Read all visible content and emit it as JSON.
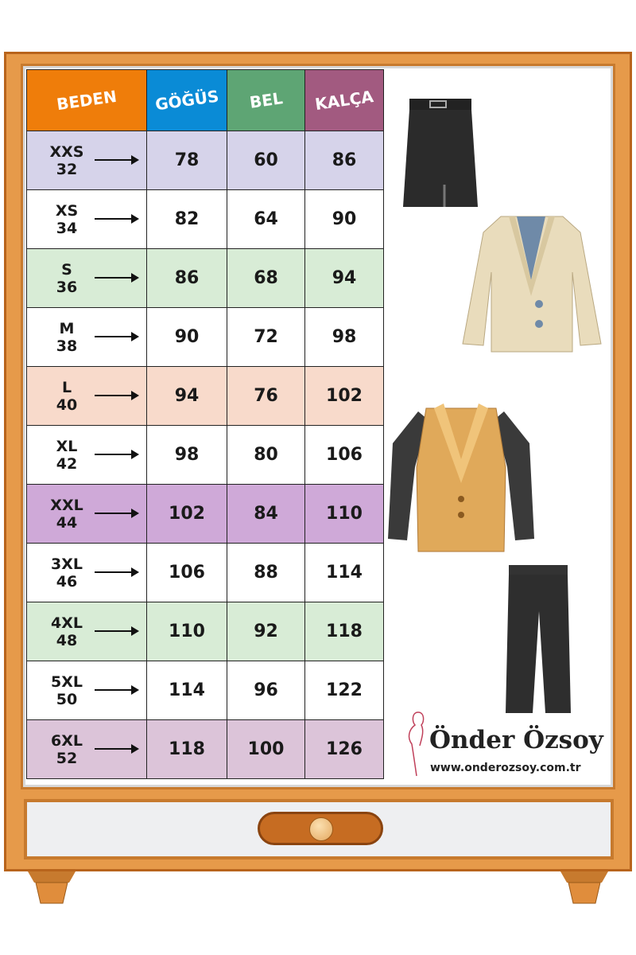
{
  "headers": [
    {
      "label": "BEDEN",
      "color": "#ef7d0a"
    },
    {
      "label": "GÖĞÜS",
      "color": "#0a8bd6"
    },
    {
      "label": "BEL",
      "color": "#5ea574"
    },
    {
      "label": "KALÇA",
      "color": "#a25a80"
    }
  ],
  "rows": [
    {
      "size": "XXS",
      "num": "32",
      "gogus": "78",
      "bel": "60",
      "kalca": "86",
      "color": "#d6d3ea"
    },
    {
      "size": "XS",
      "num": "34",
      "gogus": "82",
      "bel": "64",
      "kalca": "90",
      "color": "#ffffff"
    },
    {
      "size": "S",
      "num": "36",
      "gogus": "86",
      "bel": "68",
      "kalca": "94",
      "color": "#d8ecd6"
    },
    {
      "size": "M",
      "num": "38",
      "gogus": "90",
      "bel": "72",
      "kalca": "98",
      "color": "#ffffff"
    },
    {
      "size": "L",
      "num": "40",
      "gogus": "94",
      "bel": "76",
      "kalca": "102",
      "color": "#f8dacb"
    },
    {
      "size": "XL",
      "num": "42",
      "gogus": "98",
      "bel": "80",
      "kalca": "106",
      "color": "#ffffff"
    },
    {
      "size": "XXL",
      "num": "44",
      "gogus": "102",
      "bel": "84",
      "kalca": "110",
      "color": "#cfa9d8"
    },
    {
      "size": "3XL",
      "num": "46",
      "gogus": "106",
      "bel": "88",
      "kalca": "114",
      "color": "#ffffff"
    },
    {
      "size": "4XL",
      "num": "48",
      "gogus": "110",
      "bel": "92",
      "kalca": "118",
      "color": "#d8ecd6"
    },
    {
      "size": "5XL",
      "num": "50",
      "gogus": "114",
      "bel": "96",
      "kalca": "122",
      "color": "#ffffff"
    },
    {
      "size": "6XL",
      "num": "52",
      "gogus": "118",
      "bel": "100",
      "kalca": "126",
      "color": "#dcc4d9"
    }
  ],
  "brand": {
    "name": "Önder Özsoy",
    "url": "www.onderozsoy.com.tr"
  },
  "icons": [
    "skirt-icon",
    "cream-blazer-icon",
    "tan-jacket-icon",
    "trousers-icon",
    "silhouette-logo-icon"
  ]
}
